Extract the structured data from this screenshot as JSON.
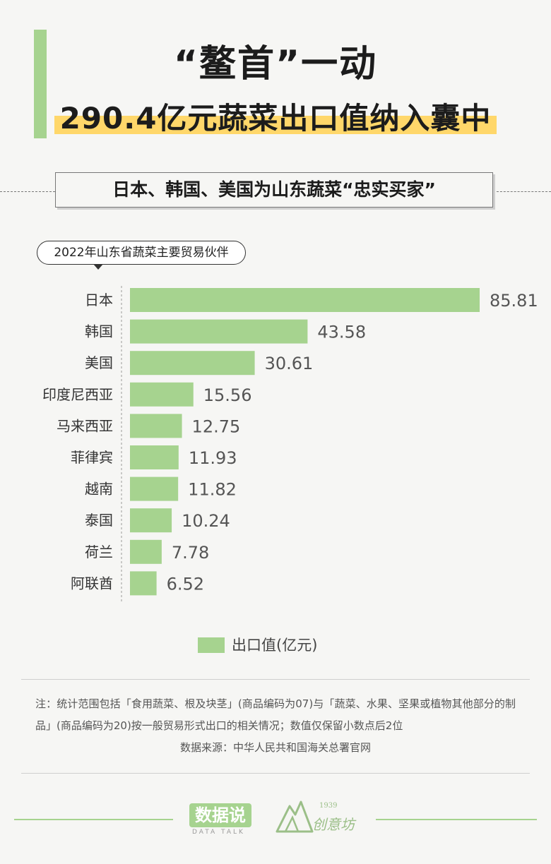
{
  "colors": {
    "accent": "#a6d38f",
    "highlight": "#ffd76a",
    "bar": "#a6d38f"
  },
  "header": {
    "title_line1": "“鳌首”一动",
    "title_line2": "290.4亿元蔬菜出口值纳入囊中",
    "subtitle": "日本、韩国、美国为山东蔬菜“忠实买家”"
  },
  "chart_label": "2022年山东省蔬菜主要贸易伙伴",
  "chart_data": {
    "type": "bar",
    "orientation": "horizontal",
    "title": "2022年山东省蔬菜主要贸易伙伴",
    "categories": [
      "日本",
      "韩国",
      "美国",
      "印度尼西亚",
      "马来西亚",
      "菲律宾",
      "越南",
      "泰国",
      "荷兰",
      "阿联酋"
    ],
    "series": [
      {
        "name": "出口值(亿元)",
        "values": [
          85.81,
          43.58,
          30.61,
          15.56,
          12.75,
          11.93,
          11.82,
          10.24,
          7.78,
          6.52
        ],
        "labels": [
          "85.81",
          "43.58",
          "30.61",
          "15.56",
          "12.75",
          "11.93",
          "11.82",
          "10.24",
          "7.78",
          "6.52"
        ]
      }
    ],
    "xlim": [
      0,
      85.81
    ],
    "grid": false,
    "legend_position": "bottom-center"
  },
  "legend": {
    "label": "出口值(亿元)"
  },
  "footnote": {
    "note": "注：统计范围包括「食用蔬菜、根及块茎」(商品编码为07)与「蔬菜、水果、坚果或植物其他部分的制品」(商品编码为20)按一般贸易形式出口的相关情况；数值仅保留小数点后2位",
    "source": "数据来源：中华人民共和国海关总署官网"
  },
  "footer": {
    "logo_main": "数据说",
    "logo_sub": "DATA TALK",
    "logo2_year": "1939",
    "logo2_text": "创意坊"
  }
}
